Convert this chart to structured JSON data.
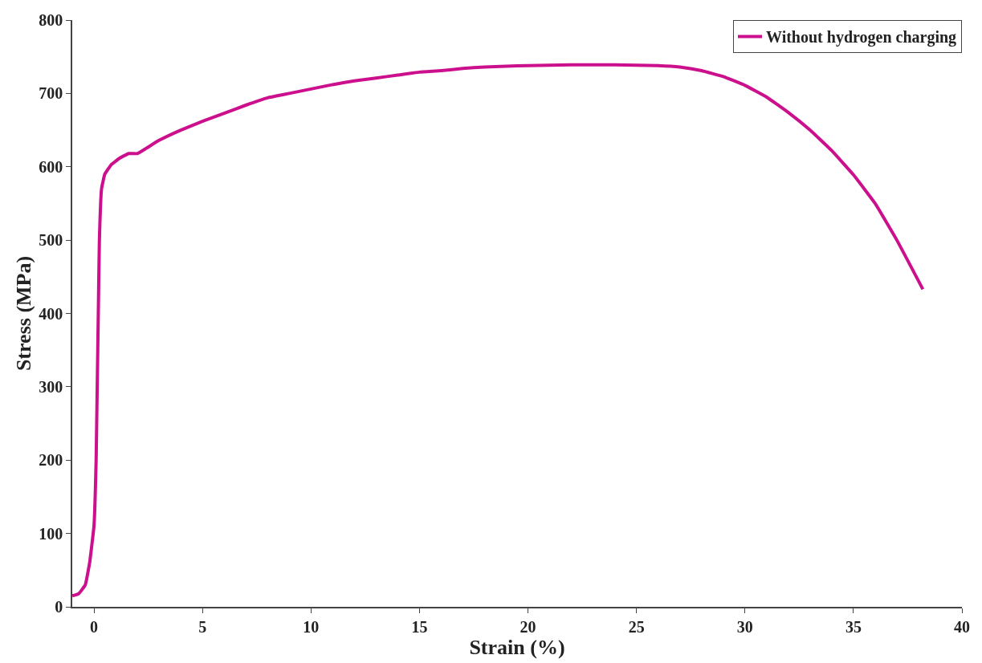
{
  "chart_data": {
    "type": "line",
    "xlabel": "Strain (%)",
    "ylabel": "Stress (MPa)",
    "xlim": [
      -1,
      40
    ],
    "xticks": [
      0,
      5,
      10,
      15,
      20,
      25,
      30,
      35,
      40
    ],
    "ylim": [
      0,
      800
    ],
    "yticks": [
      0,
      100,
      200,
      300,
      400,
      500,
      600,
      700,
      800
    ],
    "legend": "top right",
    "series": [
      {
        "name": "Without hydrogen charging",
        "color": "#cc0f8c",
        "x": [
          -1,
          -0.7,
          -0.4,
          -0.2,
          0,
          0.1,
          0.15,
          0.2,
          0.25,
          0.35,
          0.5,
          0.8,
          1.2,
          1.6,
          2,
          2.4,
          3,
          4,
          5,
          6,
          7,
          8,
          9,
          10,
          11,
          12,
          13,
          14,
          15,
          16,
          17,
          18,
          19,
          20,
          22,
          24,
          26,
          27,
          28,
          29,
          30,
          31,
          32,
          33,
          34,
          35,
          36,
          37,
          38.2
        ],
        "values": [
          15,
          18,
          30,
          60,
          110,
          200,
          300,
          400,
          500,
          570,
          590,
          603,
          612,
          618,
          618,
          625,
          636,
          650,
          662,
          673,
          684,
          694,
          700,
          706,
          712,
          717,
          721,
          725,
          729,
          731,
          734,
          736,
          737,
          738,
          739,
          739,
          738,
          736,
          731,
          723,
          711,
          695,
          674,
          650,
          622,
          589,
          550,
          500,
          433
        ]
      }
    ]
  }
}
